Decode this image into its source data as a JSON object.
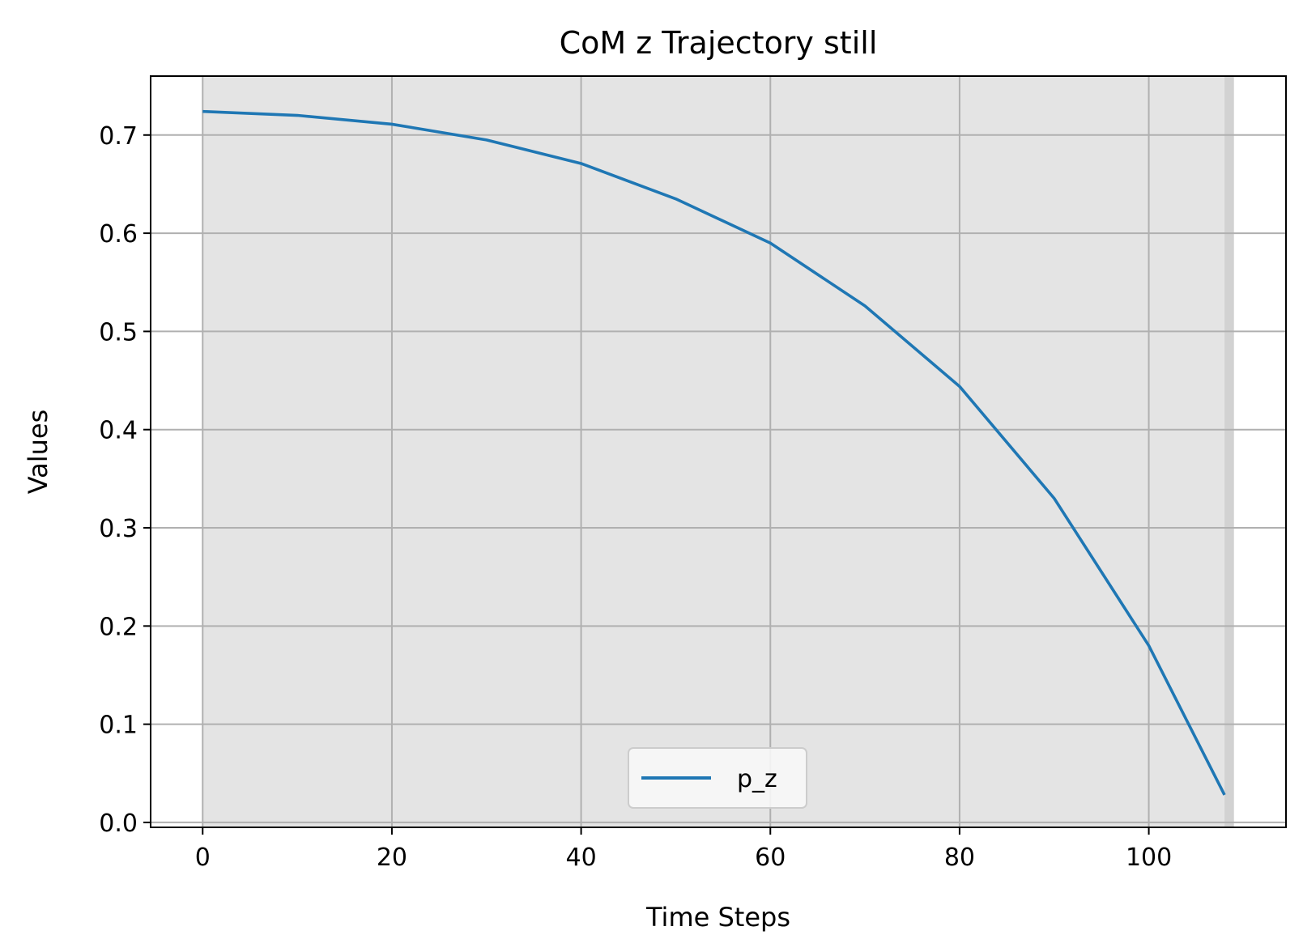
{
  "chart_data": {
    "type": "line",
    "title": "CoM z Trajectory still",
    "xlabel": "Time Steps",
    "ylabel": "Values",
    "xlim": [
      -5.5,
      114.5
    ],
    "ylim": [
      -0.005,
      0.76
    ],
    "xticks": [
      0,
      20,
      40,
      60,
      80,
      100
    ],
    "yticks": [
      0.0,
      0.1,
      0.2,
      0.3,
      0.4,
      0.5,
      0.6,
      0.7
    ],
    "xtick_labels": [
      "0",
      "20",
      "40",
      "60",
      "80",
      "100"
    ],
    "ytick_labels": [
      "0.0",
      "0.1",
      "0.2",
      "0.3",
      "0.4",
      "0.5",
      "0.6",
      "0.7"
    ],
    "grid": true,
    "legend_position": "lower center",
    "shaded_spans": [
      {
        "x0": 0,
        "x1": 108,
        "color": "#e4e4e4"
      },
      {
        "x0": 108,
        "x1": 109,
        "color": "#d2d2d2"
      }
    ],
    "series": [
      {
        "name": "p_z",
        "color": "#1f77b4",
        "x": [
          0,
          10,
          20,
          30,
          40,
          50,
          60,
          70,
          80,
          90,
          100,
          108
        ],
        "y": [
          0.724,
          0.72,
          0.711,
          0.695,
          0.671,
          0.635,
          0.59,
          0.526,
          0.444,
          0.33,
          0.18,
          0.028
        ]
      }
    ]
  }
}
